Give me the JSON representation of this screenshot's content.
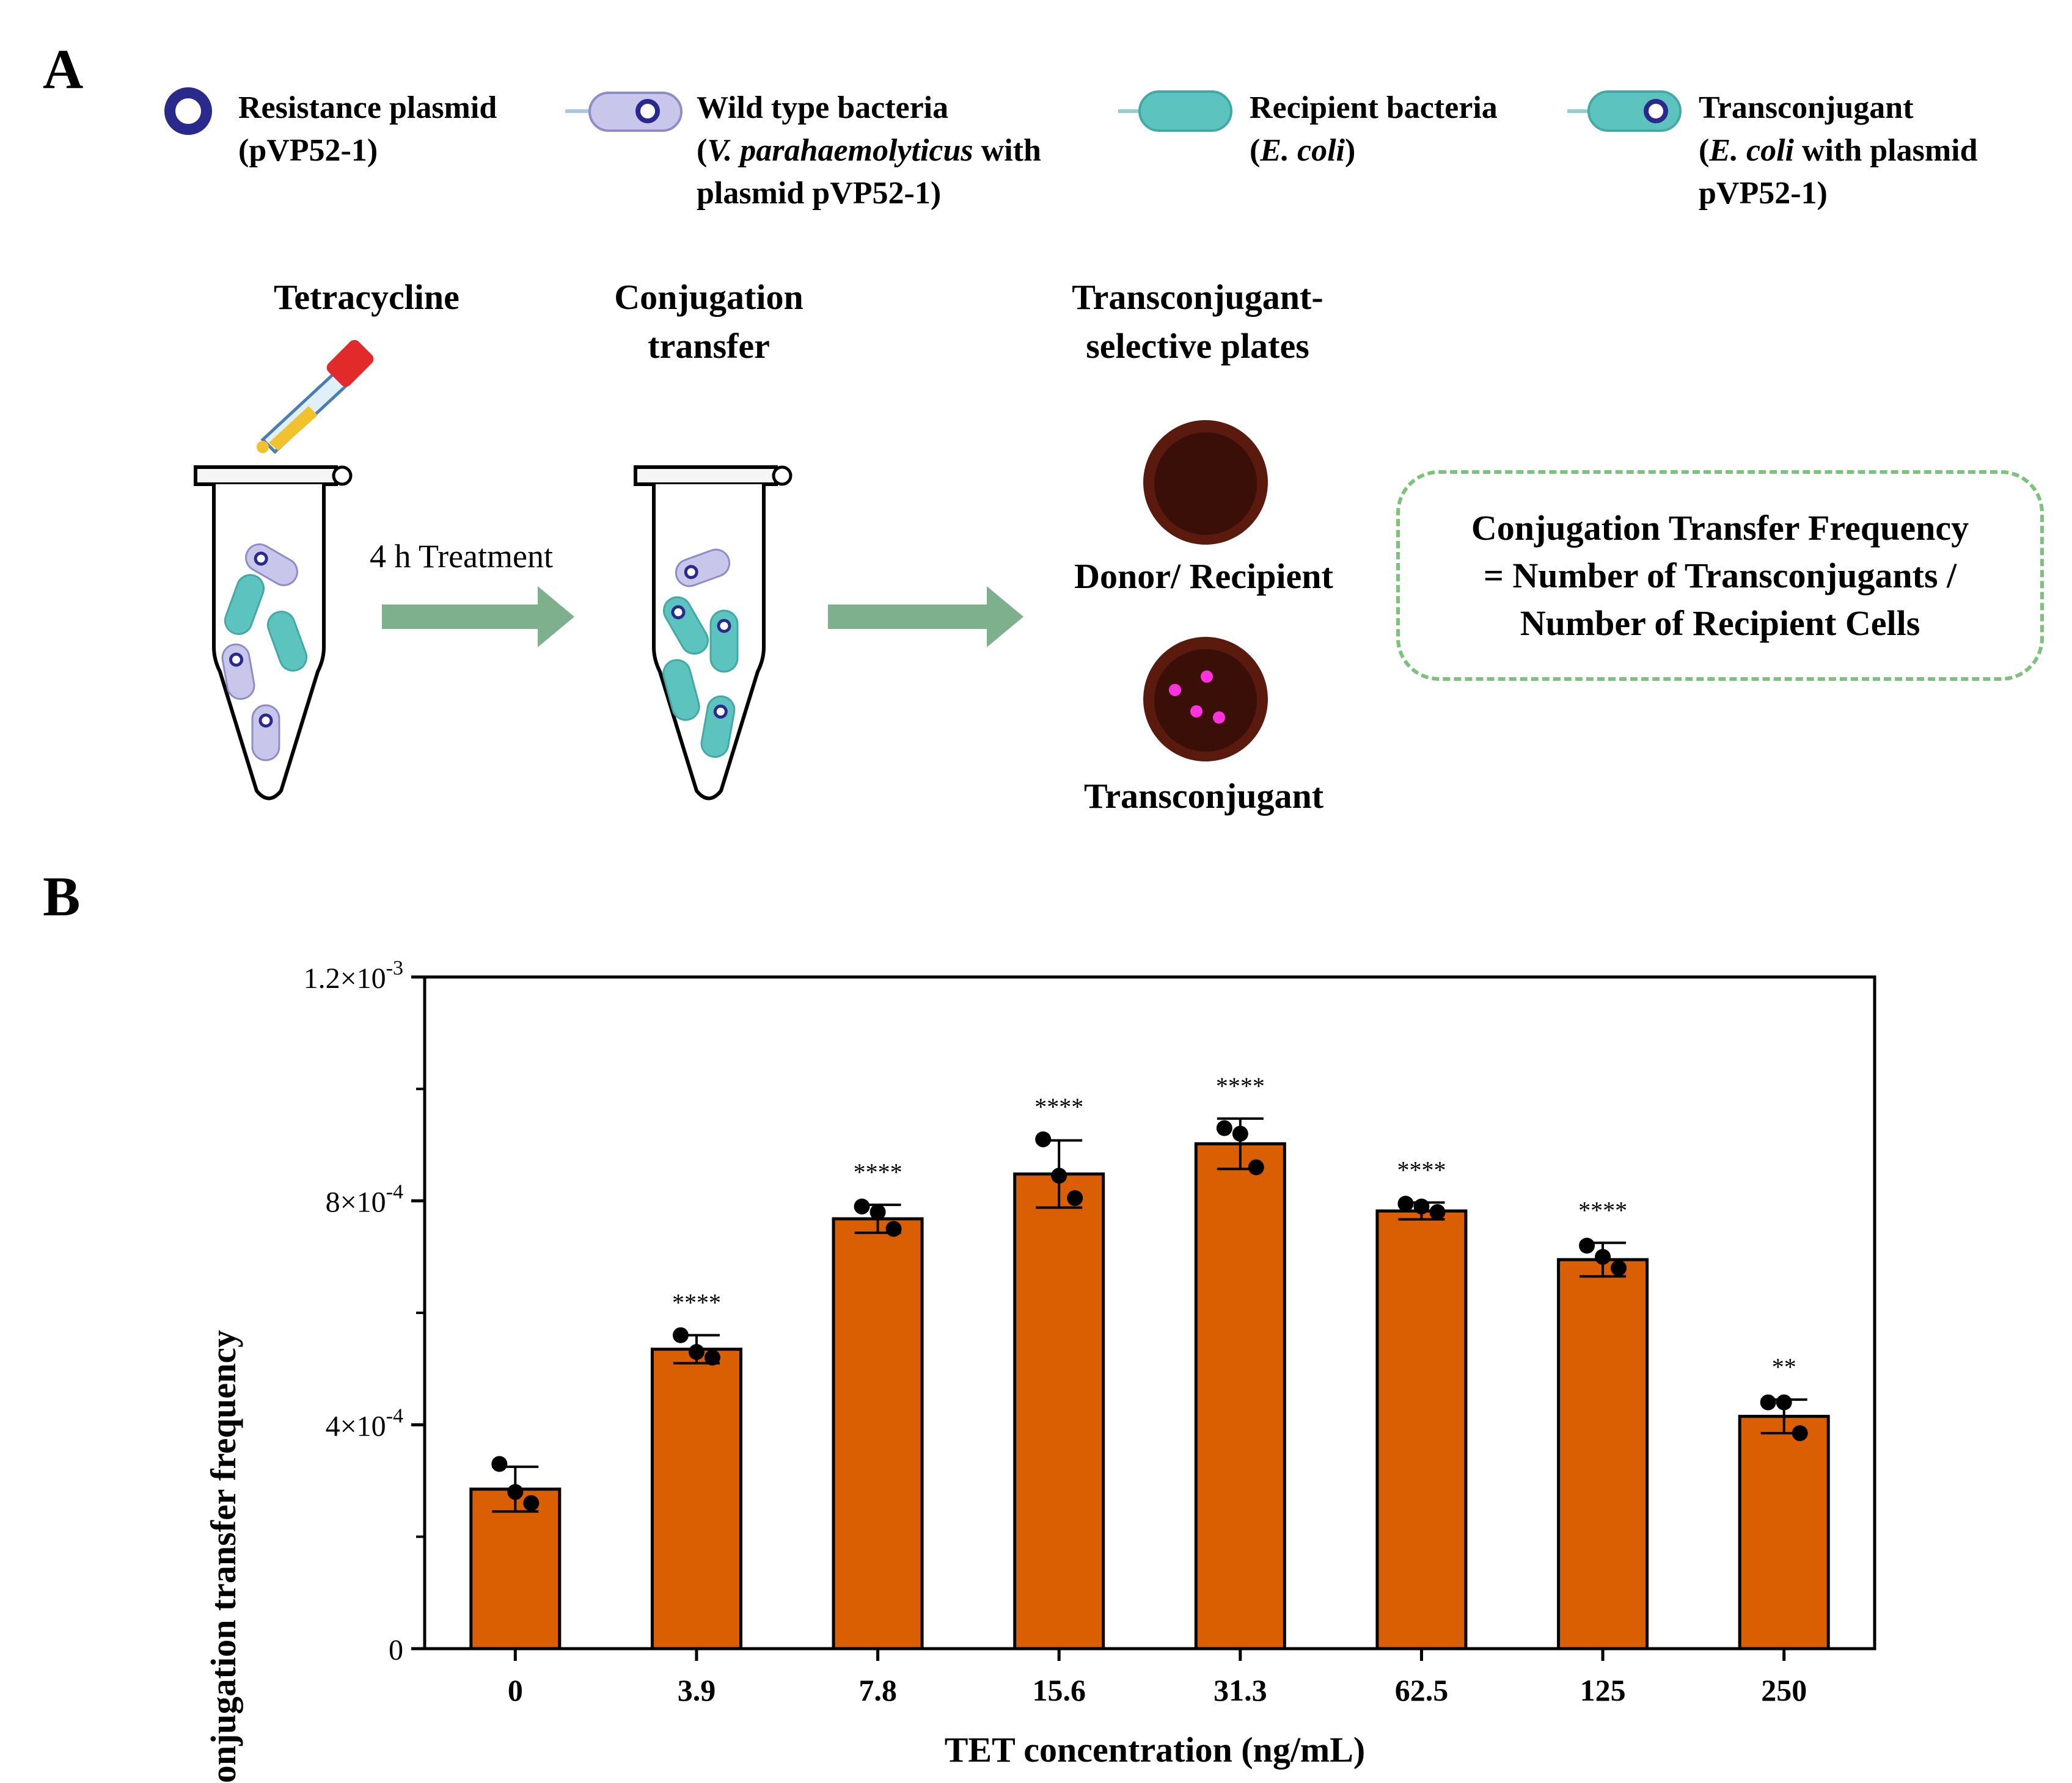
{
  "panel_a": {
    "letter": "A",
    "legend": [
      {
        "line1": "Resistance plasmid",
        "line2": "(pVP52-1)",
        "line3": ""
      },
      {
        "line1": "Wild type bacteria",
        "line2_italic": "V. parahaemolyticus",
        "line2_pre": "(",
        "line2_post": " with",
        "line3": "plasmid pVP52-1)"
      },
      {
        "line1": "Recipient bacteria",
        "line2_pre": "(",
        "line2_italic": "E. coli",
        "line2_post": ")",
        "line3": ""
      },
      {
        "line1": "Transconjugant",
        "line2_pre": "(",
        "line2_italic": "E. coli",
        "line2_post": " with plasmid",
        "line3": "pVP52-1)"
      }
    ],
    "steps": {
      "tetracycline": "Tetracycline",
      "conjugation_1": "Conjugation",
      "conjugation_2": "transfer",
      "plates_1": "Transconjugant-",
      "plates_2": "selective plates"
    },
    "treatment_label": "4 h Treatment",
    "plate_labels": {
      "donor": "Donor/ Recipient",
      "transconjugant": "Transconjugant"
    },
    "formula": {
      "line1": "Conjugation Transfer Frequency",
      "line2": "= Number of Transconjugants /",
      "line3": "Number of Recipient Cells"
    },
    "colors": {
      "plasmid": "#2a2a8c",
      "wild_type": "#c9c6ec",
      "recipient": "#5cc3bf",
      "plate": "#5a1a0e",
      "colony": "#ff33dd",
      "arrow": "#7fb08e",
      "box_border": "#7cc27c"
    }
  },
  "panel_b": {
    "letter": "B"
  },
  "chart_data": {
    "type": "bar",
    "xlabel": "TET concentration (ng/mL)",
    "ylabel": "Conjugation transfer frequency",
    "categories": [
      "0",
      "3.9",
      "7.8",
      "15.6",
      "31.3",
      "62.5",
      "125",
      "250"
    ],
    "values": [
      0.000285,
      0.000535,
      0.000768,
      0.000848,
      0.000902,
      0.000782,
      0.000695,
      0.000415
    ],
    "errors": [
      4e-05,
      2.5e-05,
      2.5e-05,
      6e-05,
      4.5e-05,
      1.5e-05,
      3e-05,
      3e-05
    ],
    "points": [
      [
        0.00033,
        0.00028,
        0.00026
      ],
      [
        0.00056,
        0.00053,
        0.00052
      ],
      [
        0.00079,
        0.00078,
        0.00075
      ],
      [
        0.00091,
        0.000845,
        0.000805
      ],
      [
        0.00093,
        0.00092,
        0.00086
      ],
      [
        0.000795,
        0.00079,
        0.00078
      ],
      [
        0.00072,
        0.0007,
        0.00068
      ],
      [
        0.00044,
        0.00044,
        0.000385
      ]
    ],
    "significance": [
      "",
      "****",
      "****",
      "****",
      "****",
      "****",
      "****",
      "**"
    ],
    "ylim": [
      0,
      0.0012
    ],
    "yticks": [
      {
        "value": 0,
        "label": "0",
        "sup": ""
      },
      {
        "value": 0.0004,
        "label": "4×10",
        "sup": "-4"
      },
      {
        "value": 0.0008,
        "label": "8×10",
        "sup": "-4"
      },
      {
        "value": 0.0012,
        "label": "1.2×10",
        "sup": "-3"
      }
    ],
    "minor_ticks": [
      0.0002,
      0.0006,
      0.001
    ],
    "bar_color": "#d95f02",
    "grid": false
  }
}
